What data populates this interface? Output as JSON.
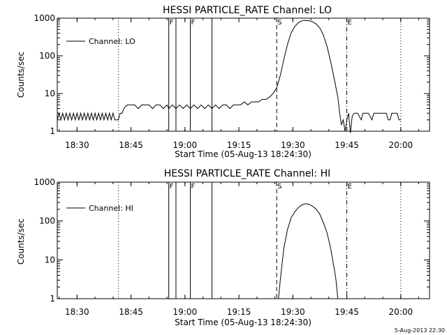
{
  "chart_data": [
    {
      "type": "line",
      "title": "HESSI PARTICLE_RATE Channel: LO",
      "xlabel": "Start Time (05-Aug-13 18:24:30)",
      "ylabel": "Counts/sec",
      "x_range": [
        "18:24:30",
        "20:08:00"
      ],
      "ylim": [
        1,
        1000
      ],
      "yscale": "log",
      "x_tick_labels": [
        "18:30",
        "18:45",
        "19:00",
        "19:15",
        "19:30",
        "19:45",
        "20:00"
      ],
      "y_tick_labels": [
        "1",
        "10",
        "100",
        "1000"
      ],
      "legend": {
        "label": "Channel: LO",
        "placement": "top-left"
      },
      "markers": [
        {
          "time": "18:41:30",
          "style": "dotted",
          "label": ""
        },
        {
          "time": "18:55:30",
          "style": "solid",
          "label": "F"
        },
        {
          "time": "18:57:30",
          "style": "solid",
          "label": ""
        },
        {
          "time": "19:01:30",
          "style": "solid",
          "label": "F"
        },
        {
          "time": "19:07:30",
          "style": "solid",
          "label": ""
        },
        {
          "time": "19:25:30",
          "style": "dashed",
          "label": "S"
        },
        {
          "time": "19:45:00",
          "style": "dashdot",
          "label": "E"
        },
        {
          "time": "20:00:00",
          "style": "dotted",
          "label": ""
        }
      ],
      "series": [
        {
          "label": "Channel: LO",
          "points": [
            [
              "18:24:30",
              2.0
            ],
            [
              "18:25:00",
              3.0
            ],
            [
              "18:25:30",
              2.0
            ],
            [
              "18:26:00",
              3.0
            ],
            [
              "18:26:30",
              2.0
            ],
            [
              "18:27:00",
              3.0
            ],
            [
              "18:27:30",
              2.0
            ],
            [
              "18:28:00",
              3.0
            ],
            [
              "18:28:30",
              2.0
            ],
            [
              "18:29:00",
              3.0
            ],
            [
              "18:29:30",
              2.0
            ],
            [
              "18:30:00",
              3.0
            ],
            [
              "18:30:30",
              2.0
            ],
            [
              "18:31:00",
              3.0
            ],
            [
              "18:31:30",
              2.0
            ],
            [
              "18:32:00",
              3.0
            ],
            [
              "18:32:30",
              2.0
            ],
            [
              "18:33:00",
              3.0
            ],
            [
              "18:33:30",
              2.0
            ],
            [
              "18:34:00",
              3.0
            ],
            [
              "18:34:30",
              2.0
            ],
            [
              "18:35:00",
              3.0
            ],
            [
              "18:35:30",
              2.0
            ],
            [
              "18:36:00",
              3.0
            ],
            [
              "18:36:30",
              2.0
            ],
            [
              "18:37:00",
              3.0
            ],
            [
              "18:37:30",
              2.0
            ],
            [
              "18:38:00",
              3.0
            ],
            [
              "18:38:30",
              2.0
            ],
            [
              "18:39:00",
              3.0
            ],
            [
              "18:39:30",
              2.0
            ],
            [
              "18:40:00",
              3.0
            ],
            [
              "18:40:30",
              2.0
            ],
            [
              "18:41:30",
              2.0
            ],
            [
              "18:42:00",
              3.0
            ],
            [
              "18:42:30",
              3.0
            ],
            [
              "18:43:00",
              4.0
            ],
            [
              "18:44:00",
              5.0
            ],
            [
              "18:45:00",
              5.0
            ],
            [
              "18:46:00",
              5.0
            ],
            [
              "18:47:00",
              4.0
            ],
            [
              "18:48:00",
              5.0
            ],
            [
              "18:49:00",
              5.0
            ],
            [
              "18:50:00",
              5.0
            ],
            [
              "18:51:00",
              4.0
            ],
            [
              "18:52:00",
              5.0
            ],
            [
              "18:53:00",
              5.0
            ],
            [
              "18:54:00",
              4.0
            ],
            [
              "18:55:00",
              5.0
            ],
            [
              "18:55:30",
              4.0
            ],
            [
              "18:56:30",
              5.0
            ],
            [
              "18:57:30",
              4.0
            ],
            [
              "18:58:30",
              5.0
            ],
            [
              "18:59:30",
              4.0
            ],
            [
              "19:00:30",
              5.0
            ],
            [
              "19:01:30",
              4.0
            ],
            [
              "19:02:30",
              5.0
            ],
            [
              "19:03:30",
              4.0
            ],
            [
              "19:04:30",
              5.0
            ],
            [
              "19:05:30",
              4.0
            ],
            [
              "19:06:30",
              5.0
            ],
            [
              "19:07:30",
              4.0
            ],
            [
              "19:08:30",
              5.0
            ],
            [
              "19:09:30",
              4.0
            ],
            [
              "19:10:30",
              5.0
            ],
            [
              "19:11:30",
              5.0
            ],
            [
              "19:12:30",
              4.0
            ],
            [
              "19:13:30",
              5.0
            ],
            [
              "19:14:30",
              5.0
            ],
            [
              "19:15:30",
              5.0
            ],
            [
              "19:16:30",
              6.0
            ],
            [
              "19:17:30",
              5.0
            ],
            [
              "19:18:30",
              6.0
            ],
            [
              "19:19:30",
              6.0
            ],
            [
              "19:20:30",
              6.0
            ],
            [
              "19:21:30",
              7.0
            ],
            [
              "19:22:30",
              7.0
            ],
            [
              "19:23:30",
              8.0
            ],
            [
              "19:24:30",
              10.0
            ],
            [
              "19:25:30",
              14.0
            ],
            [
              "19:26:30",
              30.0
            ],
            [
              "19:27:30",
              80.0
            ],
            [
              "19:28:30",
              200.0
            ],
            [
              "19:29:30",
              400.0
            ],
            [
              "19:30:30",
              600.0
            ],
            [
              "19:31:30",
              750.0
            ],
            [
              "19:32:30",
              850.0
            ],
            [
              "19:33:30",
              870.0
            ],
            [
              "19:34:30",
              850.0
            ],
            [
              "19:35:30",
              800.0
            ],
            [
              "19:36:30",
              700.0
            ],
            [
              "19:37:30",
              550.0
            ],
            [
              "19:38:30",
              350.0
            ],
            [
              "19:39:30",
              180.0
            ],
            [
              "19:40:30",
              70.0
            ],
            [
              "19:41:30",
              25.0
            ],
            [
              "19:42:30",
              8.0
            ],
            [
              "19:43:00",
              3.0
            ],
            [
              "19:43:30",
              1.5
            ],
            [
              "19:44:00",
              2.0
            ],
            [
              "19:44:30",
              1.0
            ],
            [
              "19:45:00",
              2.0
            ],
            [
              "19:45:30",
              3.0
            ],
            [
              "19:46:00",
              0.9
            ],
            [
              "19:46:30",
              2.5
            ],
            [
              "19:47:00",
              3.0
            ],
            [
              "19:48:00",
              3.0
            ],
            [
              "19:49:00",
              2.0
            ],
            [
              "19:49:30",
              3.0
            ],
            [
              "19:51:00",
              3.0
            ],
            [
              "19:52:00",
              2.0
            ],
            [
              "19:52:30",
              3.0
            ],
            [
              "19:55:00",
              3.0
            ],
            [
              "19:56:00",
              3.0
            ],
            [
              "19:56:30",
              2.0
            ],
            [
              "19:57:00",
              2.0
            ],
            [
              "19:57:30",
              3.0
            ],
            [
              "19:59:00",
              3.0
            ],
            [
              "19:59:30",
              2.0
            ],
            [
              "20:00:00",
              2.0
            ]
          ]
        }
      ]
    },
    {
      "type": "line",
      "title": "HESSI PARTICLE_RATE Channel: HI",
      "xlabel": "Start Time (05-Aug-13 18:24:30)",
      "ylabel": "Counts/sec",
      "x_range": [
        "18:24:30",
        "20:08:00"
      ],
      "ylim": [
        1,
        1000
      ],
      "yscale": "log",
      "x_tick_labels": [
        "18:30",
        "18:45",
        "19:00",
        "19:15",
        "19:30",
        "19:45",
        "20:00"
      ],
      "y_tick_labels": [
        "1",
        "10",
        "100",
        "1000"
      ],
      "legend": {
        "label": "Channel: HI",
        "placement": "top-left"
      },
      "markers": [
        {
          "time": "18:41:30",
          "style": "dotted",
          "label": ""
        },
        {
          "time": "18:55:30",
          "style": "solid",
          "label": "F"
        },
        {
          "time": "18:57:30",
          "style": "solid",
          "label": ""
        },
        {
          "time": "19:01:30",
          "style": "solid",
          "label": "F"
        },
        {
          "time": "19:07:30",
          "style": "solid",
          "label": ""
        },
        {
          "time": "19:25:30",
          "style": "dashed",
          "label": "S"
        },
        {
          "time": "19:45:00",
          "style": "dashdot",
          "label": "E"
        },
        {
          "time": "20:00:00",
          "style": "dotted",
          "label": ""
        }
      ],
      "series": [
        {
          "label": "Channel: HI",
          "points": [
            [
              "19:26:00",
              1.0
            ],
            [
              "19:26:30",
              3.0
            ],
            [
              "19:27:00",
              8.0
            ],
            [
              "19:27:30",
              20.0
            ],
            [
              "19:28:30",
              60.0
            ],
            [
              "19:29:30",
              120.0
            ],
            [
              "19:30:30",
              170.0
            ],
            [
              "19:31:30",
              220.0
            ],
            [
              "19:32:30",
              260.0
            ],
            [
              "19:33:30",
              280.0
            ],
            [
              "19:34:30",
              270.0
            ],
            [
              "19:35:30",
              240.0
            ],
            [
              "19:36:30",
              200.0
            ],
            [
              "19:37:30",
              150.0
            ],
            [
              "19:38:30",
              90.0
            ],
            [
              "19:39:30",
              50.0
            ],
            [
              "19:40:30",
              20.0
            ],
            [
              "19:41:30",
              6.0
            ],
            [
              "19:42:00",
              3.0
            ],
            [
              "19:42:30",
              1.0
            ]
          ]
        }
      ]
    }
  ],
  "footer": {
    "timestamp": "5-Aug-2013 22:30"
  }
}
